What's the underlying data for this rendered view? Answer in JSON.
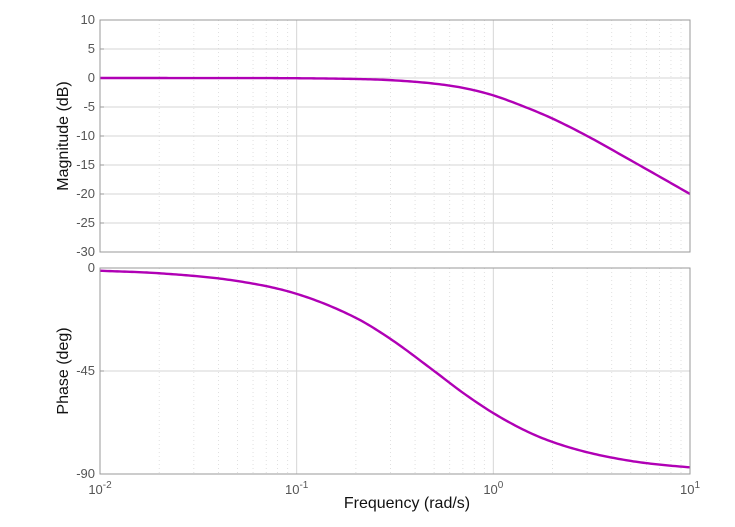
{
  "chart_data": [
    {
      "type": "line",
      "name": "magnitude",
      "ylabel": "Magnitude (dB)",
      "xscale": "log",
      "xlim": [
        0.01,
        10
      ],
      "ylim": [
        -30,
        10
      ],
      "yticks": [
        10,
        5,
        0,
        -5,
        -10,
        -15,
        -20,
        -25,
        -30
      ],
      "grid": true,
      "color": "#b000b5",
      "x": [
        0.01,
        0.02,
        0.05,
        0.1,
        0.2,
        0.3,
        0.5,
        0.7,
        1.0,
        1.5,
        2,
        3,
        5,
        7,
        10
      ],
      "y": [
        0.0,
        -0.002,
        -0.011,
        -0.04,
        -0.17,
        -0.37,
        -0.97,
        -1.7,
        -3.0,
        -5.2,
        -7.0,
        -10.0,
        -14.2,
        -17.0,
        -20.0
      ]
    },
    {
      "type": "line",
      "name": "phase",
      "ylabel": "Phase (deg)",
      "xlabel": "Frequency  (rad/s)",
      "xscale": "log",
      "xlim": [
        0.01,
        10
      ],
      "ylim": [
        -90,
        0
      ],
      "yticks": [
        0,
        -45,
        -90
      ],
      "xticks": [
        {
          "base": "10",
          "exp": "-2"
        },
        {
          "base": "10",
          "exp": "-1"
        },
        {
          "base": "10",
          "exp": "0"
        },
        {
          "base": "10",
          "exp": "1"
        }
      ],
      "grid": true,
      "color": "#b000b5",
      "x": [
        0.01,
        0.02,
        0.05,
        0.1,
        0.2,
        0.3,
        0.5,
        0.7,
        1.0,
        1.5,
        2,
        3,
        5,
        7,
        10
      ],
      "y": [
        -1.2,
        -2.3,
        -5.7,
        -11.3,
        -21.8,
        -31.0,
        -45.0,
        -54.5,
        -63.4,
        -71.6,
        -76.0,
        -80.5,
        -84.3,
        -85.9,
        -87.1
      ]
    }
  ]
}
